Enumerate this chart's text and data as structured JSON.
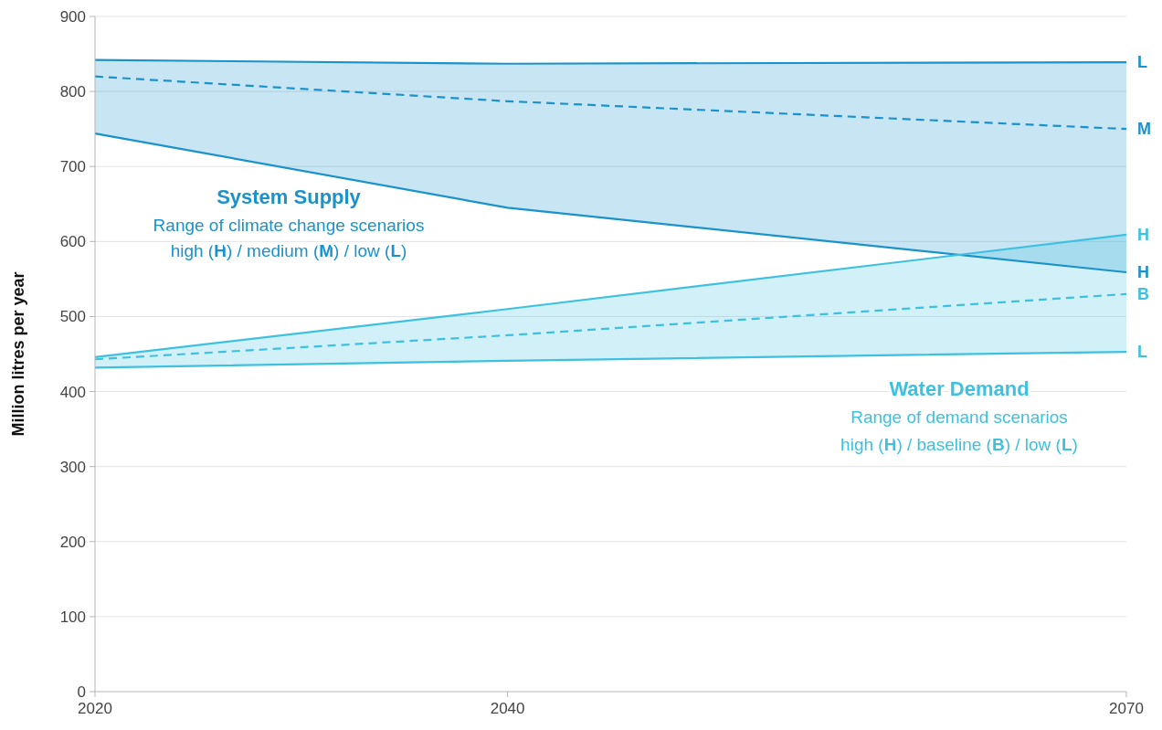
{
  "chart_data": {
    "type": "line",
    "ylabel": "Million litres per year",
    "x": [
      2020,
      2040,
      2070
    ],
    "xlim": [
      2020,
      2070
    ],
    "xticks": [
      2020,
      2040,
      2070
    ],
    "ylim": [
      0,
      900
    ],
    "yticks": [
      0,
      100,
      200,
      300,
      400,
      500,
      600,
      700,
      800,
      900
    ],
    "grid": "y",
    "series": [
      {
        "name": "L",
        "color": "#1a92cc",
        "values": [
          842,
          837,
          839
        ],
        "line_style": "solid"
      },
      {
        "name": "M",
        "color": "#1a92cc",
        "values": [
          820,
          787,
          750
        ],
        "line_style": "dashed",
        "lower": [
          744,
          645,
          559
        ],
        "upper": [
          842,
          837,
          839
        ]
      },
      {
        "name": "H",
        "color": "#1a92cc",
        "values": [
          744,
          645,
          559
        ],
        "line_style": "solid"
      },
      {
        "name": "H",
        "color": "#3ec0e0",
        "values": [
          446,
          510,
          609
        ],
        "line_style": "solid"
      },
      {
        "name": "B",
        "color": "#3ec0e0",
        "values": [
          443,
          475,
          530
        ],
        "line_style": "dashed",
        "lower": [
          432,
          441,
          453
        ],
        "upper": [
          446,
          510,
          609
        ]
      },
      {
        "name": "L",
        "color": "#3ec0e0",
        "values": [
          432,
          441,
          453
        ],
        "line_style": "solid"
      }
    ],
    "annotations": [
      "System Supply",
      "Range of climate change scenarios",
      "high (H) / medium (M) / low (L)",
      "Water Demand",
      "Range of demand scenarios",
      "high (H) / baseline (B) / low (L)"
    ]
  }
}
